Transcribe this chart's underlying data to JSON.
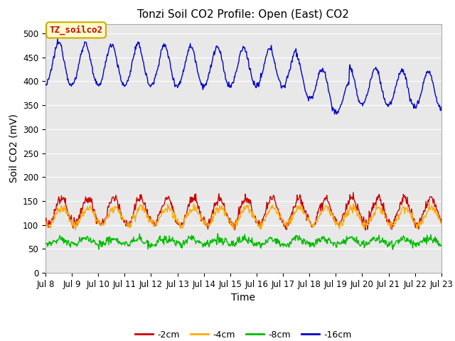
{
  "title": "Tonzi Soil CO2 Profile: Open (East) CO2",
  "ylabel": "Soil CO2 (mV)",
  "xlabel": "Time",
  "xlim_days": [
    8,
    23
  ],
  "ylim": [
    0,
    520
  ],
  "yticks": [
    0,
    50,
    100,
    150,
    200,
    250,
    300,
    350,
    400,
    450,
    500
  ],
  "xtick_labels": [
    "Jul 8",
    "Jul 9",
    "Jul 10",
    "Jul 11",
    "Jul 12",
    "Jul 13",
    "Jul 14",
    "Jul 15",
    "Jul 16",
    "Jul 17",
    "Jul 18",
    "Jul 19",
    "Jul 20",
    "Jul 21",
    "Jul 22",
    "Jul 23"
  ],
  "xtick_days": [
    8,
    9,
    10,
    11,
    12,
    13,
    14,
    15,
    16,
    17,
    18,
    19,
    20,
    21,
    22,
    23
  ],
  "colors": {
    "m2cm": "#cc0000",
    "m4cm": "#ffaa00",
    "m8cm": "#00bb00",
    "m16cm": "#0000cc"
  },
  "legend_labels": [
    "-2cm",
    "-4cm",
    "-8cm",
    "-16cm"
  ],
  "annotation_text": "TZ_soilco2",
  "annotation_color": "#cc0000",
  "annotation_bg": "#ffffcc",
  "annotation_border": "#ccaa00",
  "title_fontsize": 11,
  "axis_fontsize": 10,
  "tick_fontsize": 8.5,
  "legend_fontsize": 9,
  "fig_bg": "#ffffff",
  "plot_bg": "#e8e8e8"
}
